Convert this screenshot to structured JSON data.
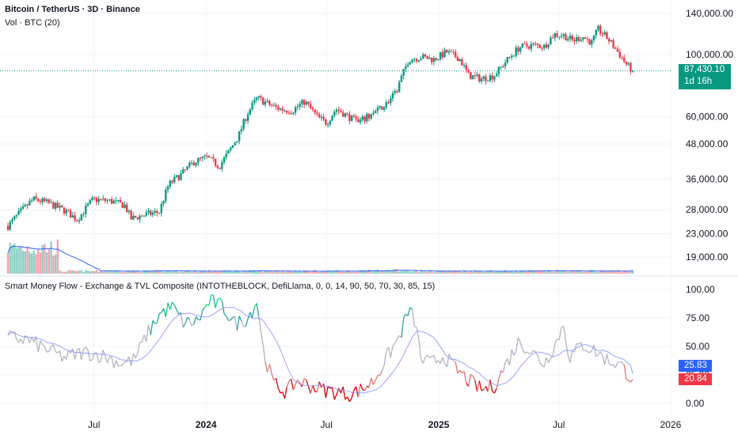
{
  "header": {
    "symbol": "Bitcoin / TetherUS · 3D · Binance",
    "volume": "Vol · BTC (20)",
    "indicator": "Smart Money Flow - Exchange & TVL Composite (INTOTHEBLOCK, DefiLlama, 0, 0, 14, 90, 50, 70, 30, 85, 15)"
  },
  "price_badge": {
    "price": "87,430.10",
    "countdown": "1d 16h"
  },
  "indicator_badges": {
    "ma": "25.83",
    "value": "20.84"
  },
  "colors": {
    "up": "#089981",
    "down": "#f23645",
    "ma_line": "#2962ff",
    "badge_blue": "#2962ff",
    "badge_green": "#089981",
    "badge_red": "#f23645"
  },
  "chart_data": [
    {
      "type": "candlestick",
      "scale": "log",
      "y_ticks": [
        "140,000.00",
        "100,000.00",
        "60,000.00",
        "48,000.00",
        "36,000.00",
        "28,000.00",
        "23,000.00",
        "19,000.00"
      ],
      "y_tick_values": [
        140000,
        100000,
        60000,
        48000,
        36000,
        28000,
        23000,
        19000
      ],
      "last_price": 87430.1,
      "x_ticks": [
        {
          "label": "Jul",
          "bold": false,
          "t": 0.1364
        },
        {
          "label": "2024",
          "bold": true,
          "t": 0.3139
        },
        {
          "label": "Jul",
          "bold": false,
          "t": 0.5046
        },
        {
          "label": "2025",
          "bold": true,
          "t": 0.6826
        },
        {
          "label": "Jul",
          "bold": false,
          "t": 0.8728
        },
        {
          "label": "2026",
          "bold": false,
          "t": 1.05
        }
      ],
      "anchors": [
        [
          0.0,
          24500
        ],
        [
          0.02,
          27500
        ],
        [
          0.04,
          30500
        ],
        [
          0.06,
          29800
        ],
        [
          0.09,
          27800
        ],
        [
          0.11,
          25800
        ],
        [
          0.135,
          30500
        ],
        [
          0.165,
          30000
        ],
        [
          0.185,
          29000
        ],
        [
          0.195,
          26000
        ],
        [
          0.215,
          26800
        ],
        [
          0.24,
          27500
        ],
        [
          0.255,
          34500
        ],
        [
          0.275,
          37500
        ],
        [
          0.295,
          41500
        ],
        [
          0.315,
          43000
        ],
        [
          0.335,
          40000
        ],
        [
          0.35,
          45000
        ],
        [
          0.365,
          51000
        ],
        [
          0.38,
          62000
        ],
        [
          0.395,
          70000
        ],
        [
          0.41,
          67000
        ],
        [
          0.43,
          64000
        ],
        [
          0.45,
          63000
        ],
        [
          0.47,
          68000
        ],
        [
          0.49,
          60000
        ],
        [
          0.505,
          57000
        ],
        [
          0.52,
          64000
        ],
        [
          0.535,
          61000
        ],
        [
          0.555,
          57000
        ],
        [
          0.57,
          60000
        ],
        [
          0.585,
          63000
        ],
        [
          0.6,
          67000
        ],
        [
          0.615,
          73000
        ],
        [
          0.635,
          96000
        ],
        [
          0.655,
          98000
        ],
        [
          0.675,
          96000
        ],
        [
          0.695,
          102000
        ],
        [
          0.715,
          97000
        ],
        [
          0.73,
          84000
        ],
        [
          0.75,
          82000
        ],
        [
          0.77,
          84000
        ],
        [
          0.79,
          95000
        ],
        [
          0.81,
          106000
        ],
        [
          0.83,
          108000
        ],
        [
          0.85,
          107000
        ],
        [
          0.865,
          118000
        ],
        [
          0.88,
          117000
        ],
        [
          0.895,
          112000
        ],
        [
          0.91,
          116000
        ],
        [
          0.925,
          110000
        ],
        [
          0.935,
          123000
        ],
        [
          0.95,
          114000
        ],
        [
          0.965,
          103000
        ],
        [
          0.98,
          92000
        ],
        [
          0.99,
          87430
        ]
      ]
    },
    {
      "type": "bar",
      "name": "Vol · BTC (20)"
    },
    {
      "type": "line",
      "y_ticks": [
        "100.00",
        "75.00",
        "50.00",
        "25.00",
        "0.00"
      ],
      "y_tick_values": [
        100,
        75,
        50,
        25,
        0
      ],
      "last_value": 20.84,
      "last_ma": 25.83,
      "anchors": [
        [
          0.0,
          58
        ],
        [
          0.03,
          56
        ],
        [
          0.06,
          48
        ],
        [
          0.09,
          40
        ],
        [
          0.12,
          45
        ],
        [
          0.15,
          42
        ],
        [
          0.18,
          35
        ],
        [
          0.2,
          38
        ],
        [
          0.22,
          60
        ],
        [
          0.24,
          78
        ],
        [
          0.26,
          85
        ],
        [
          0.28,
          70
        ],
        [
          0.3,
          72
        ],
        [
          0.32,
          90
        ],
        [
          0.34,
          85
        ],
        [
          0.36,
          70
        ],
        [
          0.38,
          75
        ],
        [
          0.395,
          90
        ],
        [
          0.405,
          45
        ],
        [
          0.42,
          18
        ],
        [
          0.44,
          10
        ],
        [
          0.46,
          20
        ],
        [
          0.48,
          15
        ],
        [
          0.5,
          12
        ],
        [
          0.52,
          10
        ],
        [
          0.54,
          8
        ],
        [
          0.56,
          12
        ],
        [
          0.58,
          20
        ],
        [
          0.6,
          40
        ],
        [
          0.62,
          58
        ],
        [
          0.635,
          82
        ],
        [
          0.645,
          72
        ],
        [
          0.655,
          38
        ],
        [
          0.67,
          35
        ],
        [
          0.69,
          42
        ],
        [
          0.71,
          30
        ],
        [
          0.73,
          20
        ],
        [
          0.75,
          12
        ],
        [
          0.77,
          15
        ],
        [
          0.79,
          35
        ],
        [
          0.81,
          55
        ],
        [
          0.83,
          45
        ],
        [
          0.85,
          35
        ],
        [
          0.87,
          55
        ],
        [
          0.88,
          70
        ],
        [
          0.89,
          40
        ],
        [
          0.91,
          52
        ],
        [
          0.93,
          46
        ],
        [
          0.95,
          38
        ],
        [
          0.97,
          34
        ],
        [
          0.99,
          21
        ]
      ]
    }
  ]
}
